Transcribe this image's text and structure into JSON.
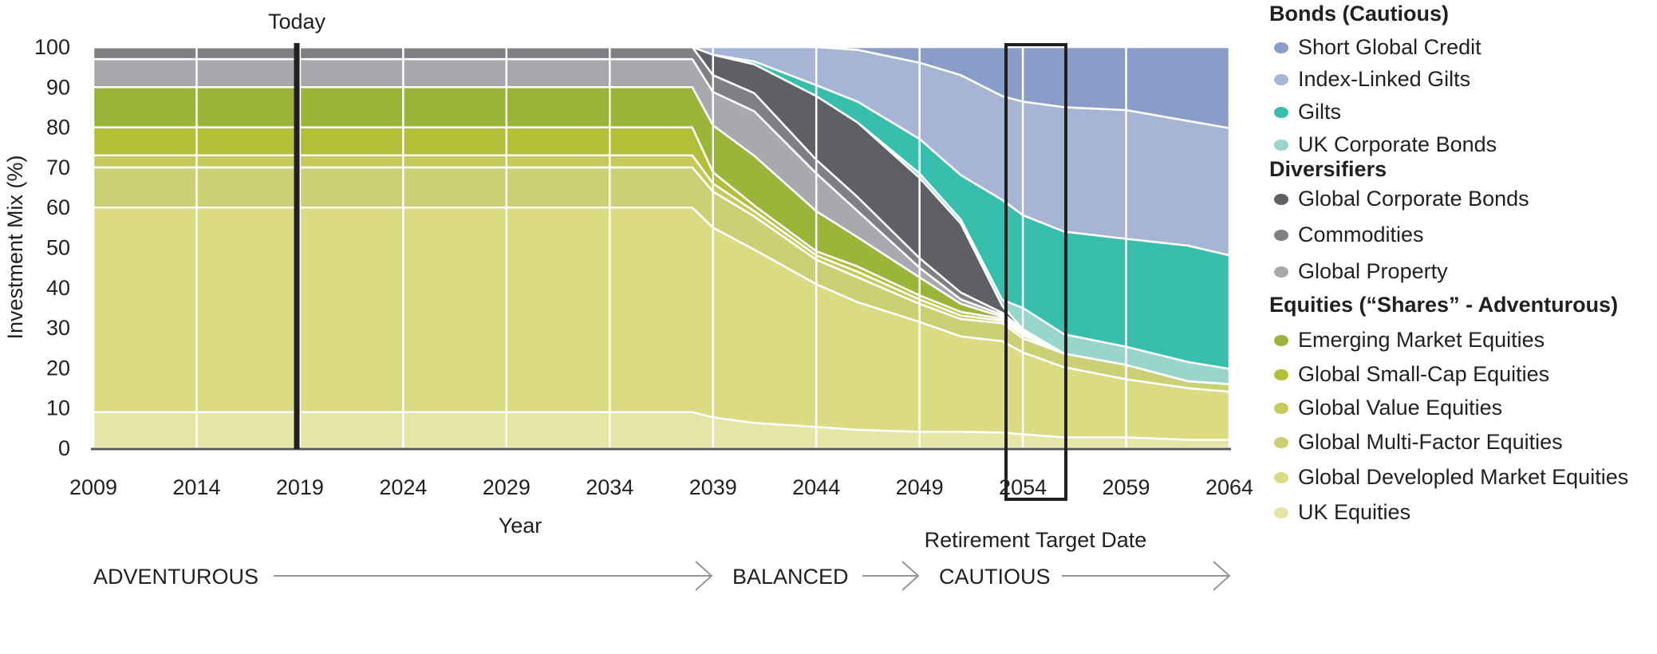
{
  "chart_data": {
    "type": "area",
    "stacked": true,
    "title": "",
    "xlabel": "Year",
    "ylabel": "Investment Mix (%)",
    "xlim": [
      2009,
      2064
    ],
    "ylim": [
      0,
      100
    ],
    "x_ticks": [
      "2009",
      "2014",
      "2019",
      "2024",
      "2029",
      "2034",
      "2039",
      "2044",
      "2049",
      "2054",
      "2059",
      "2064"
    ],
    "y_ticks": [
      "0",
      "10",
      "20",
      "30",
      "40",
      "50",
      "60",
      "70",
      "80",
      "90",
      "100"
    ],
    "grid": "vertical white lines every 5 years",
    "x": [
      2009,
      2038,
      2039,
      2041,
      2044,
      2046,
      2049,
      2051,
      2053,
      2054,
      2056,
      2059,
      2062,
      2064
    ],
    "series": [
      {
        "name": "UK Equities",
        "color": "#e5e6a5",
        "values": [
          9,
          9,
          7.7,
          6.3,
          5.3,
          4.6,
          4.1,
          4.1,
          3.9,
          3.5,
          2.7,
          2.7,
          2.1,
          2.1
        ]
      },
      {
        "name": "Global Developled Market Equities",
        "color": "#dbdb84",
        "values": [
          51,
          51,
          47.3,
          43.2,
          35.6,
          31.8,
          27.4,
          23.8,
          22.8,
          20.4,
          17.5,
          14.5,
          12.9,
          12
        ]
      },
      {
        "name": "Global Multi-Factor Equities",
        "color": "#cbd074",
        "values": [
          10,
          10,
          9,
          8.3,
          6.1,
          6.2,
          4.5,
          4.3,
          4.5,
          3.5,
          3.4,
          3.6,
          1.7,
          1.9
        ]
      },
      {
        "name": "Global Value Equities",
        "color": "#c5ca5a",
        "values": [
          3,
          3,
          2,
          1.3,
          1.1,
          1.4,
          1.1,
          0.9,
          0.6,
          0.8,
          0,
          0,
          0,
          0
        ]
      },
      {
        "name": "Global Small-Cap Equities",
        "color": "#b3bf38",
        "values": [
          7,
          7,
          2.8,
          1.4,
          1,
          1.3,
          1,
          0.9,
          0.5,
          0.4,
          0,
          0,
          0,
          0
        ]
      },
      {
        "name": "Emerging Market Equities",
        "color": "#9bb43a",
        "values": [
          10,
          10,
          11.7,
          12.4,
          10,
          7.3,
          4.5,
          2,
          0.5,
          0.4,
          0,
          0,
          0,
          0
        ]
      },
      {
        "name": "Global Property",
        "color": "#a8a9ad",
        "values": [
          7,
          7,
          8.3,
          11.1,
          9.4,
          6.5,
          2.4,
          1.1,
          0.5,
          0.3,
          0,
          0,
          0,
          0
        ]
      },
      {
        "name": "Commodities",
        "color": "#808084",
        "values": [
          3,
          3,
          4.2,
          4.5,
          3.4,
          3.5,
          2.4,
          1.7,
          0.5,
          0.2,
          0,
          0,
          0,
          0
        ]
      },
      {
        "name": "Global Corporate Bonds",
        "color": "#5f6063",
        "values": [
          0,
          0,
          5.1,
          7.2,
          15.9,
          18.6,
          20,
          17.2,
          1.7,
          0.2,
          0,
          0,
          0,
          0
        ]
      },
      {
        "name": "UK Corporate Bonds",
        "color": "#98d6cc",
        "values": [
          0,
          0,
          0,
          0,
          0,
          0,
          1.1,
          1,
          1.5,
          5.3,
          4.8,
          4.5,
          4.8,
          3.8
        ]
      },
      {
        "name": "Gilts",
        "color": "#38bead",
        "values": [
          0,
          0,
          0,
          0.7,
          2.7,
          5.2,
          8.6,
          11.1,
          24.9,
          23.1,
          25.6,
          26.9,
          29,
          28.3
        ]
      },
      {
        "name": "Index-Linked Gilts",
        "color": "#a6b5d6",
        "values": [
          0,
          0,
          1.9,
          3.6,
          9.5,
          12.9,
          19,
          24.9,
          25.9,
          28.3,
          31,
          32.1,
          31.1,
          31.7
        ]
      },
      {
        "name": "Short Global Credit",
        "color": "#8a9dc8",
        "values": [
          0,
          0,
          0,
          0,
          0,
          0.7,
          3.9,
          7,
          12.2,
          13.6,
          15,
          15.7,
          18.4,
          20.2
        ]
      }
    ],
    "annotations": {
      "today_label": "Today",
      "today_year": 2019,
      "retirement_label": "Retirement Target Date",
      "retirement_years": [
        2053,
        2056
      ]
    },
    "phases": [
      "ADVENTUROUS",
      "BALANCED",
      "CAUTIOUS"
    ]
  },
  "legend": {
    "groups": [
      {
        "title": "Bonds (Cautious)",
        "items": [
          {
            "label": "Short Global Credit",
            "color": "#8a9dc8"
          },
          {
            "label": "Index-Linked Gilts",
            "color": "#a6b5d6"
          },
          {
            "label": "Gilts",
            "color": "#38bead"
          },
          {
            "label": "UK Corporate Bonds",
            "color": "#98d6cc"
          }
        ]
      },
      {
        "title": "Diversifiers",
        "items": [
          {
            "label": "Global Corporate Bonds",
            "color": "#5f6063"
          },
          {
            "label": "Commodities",
            "color": "#808084"
          },
          {
            "label": "Global Property",
            "color": "#a8a9ad"
          }
        ]
      },
      {
        "title": "Equities (“Shares” - Adventurous)",
        "items": [
          {
            "label": "Emerging Market Equities",
            "color": "#9bb43a"
          },
          {
            "label": "Global Small-Cap Equities",
            "color": "#b3bf38"
          },
          {
            "label": "Global Value Equities",
            "color": "#c5ca5a"
          },
          {
            "label": "Global Multi-Factor Equities",
            "color": "#cbd074"
          },
          {
            "label": "Global Developled Market Equities",
            "color": "#dbdb84"
          },
          {
            "label": "UK Equities",
            "color": "#e5e6a5"
          }
        ]
      }
    ]
  }
}
